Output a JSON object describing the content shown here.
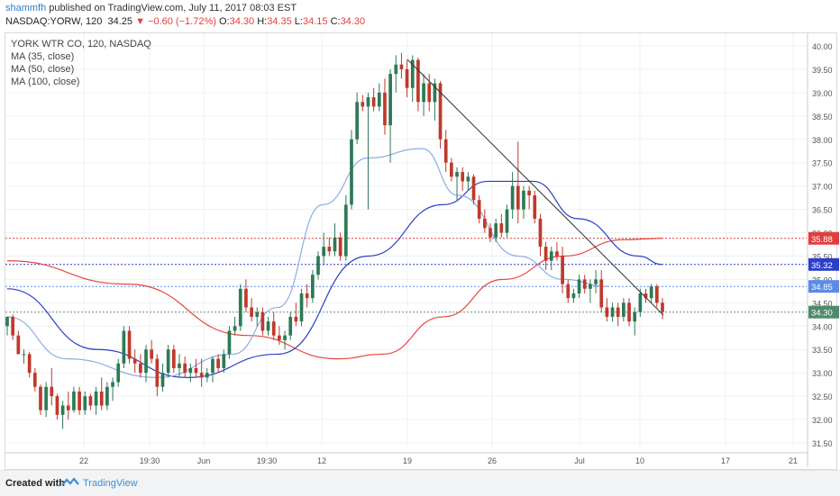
{
  "header": {
    "user": "shammfh",
    "published": " published on TradingView.com, July 11, 2017 08:03 EST",
    "symbol": "NASDAQ:YORW, 120",
    "last": "34.25",
    "arrow": "▼",
    "change": "−0.60 (−1.72%)",
    "o_label": "O:",
    "o_value": "34.30",
    "h_label": "H:",
    "h_value": "34.35",
    "l_label": "L:",
    "l_value": "34.15",
    "c_label": "C:",
    "c_value": "34.30"
  },
  "legend": {
    "title": "YORK WTR CO, 120, NASDAQ",
    "ma35": "MA (35, close)",
    "ma50": "MA (50, close)",
    "ma100": "MA (100, close)"
  },
  "footer": {
    "created_with": "Created with",
    "brand": "TradingView"
  },
  "colors": {
    "up": "#2d7a55",
    "down": "#c0392b",
    "ma35": "#8aaee6",
    "ma50": "#2a3fc8",
    "ma100": "#e8463c",
    "trendline": "#333333",
    "red_level": "#e03e3e",
    "blue_level": "#2a3fc8",
    "light_level": "#5b8be8",
    "gray_level": "#6a8a7a"
  },
  "chart_data": {
    "type": "candlestick",
    "title": "YORK WTR CO, 120, NASDAQ",
    "ylim": [
      31.2,
      40.2
    ],
    "y_ticks": [
      "40.00",
      "39.50",
      "39.00",
      "38.50",
      "38.00",
      "37.50",
      "37.00",
      "36.50",
      "36.00",
      "35.50",
      "35.00",
      "34.50",
      "34.00",
      "33.50",
      "33.00",
      "32.50",
      "32.00",
      "31.50"
    ],
    "x_ticks": [
      "22",
      "19:30",
      "Jun",
      "19:30",
      "12",
      "19",
      "26",
      "Jul",
      "10",
      "17",
      "21"
    ],
    "price_labels": [
      {
        "text": "35.88",
        "value": 35.88,
        "color": "#e03e3e"
      },
      {
        "text": "35.32",
        "value": 35.32,
        "color": "#2a3fc8"
      },
      {
        "text": "34.85",
        "value": 34.85,
        "color": "#5b8be8"
      },
      {
        "text": "34.30",
        "value": 34.3,
        "color": "#4e8c6a"
      }
    ],
    "candles": [
      [
        34.0,
        34.2,
        33.8,
        34.2
      ],
      [
        34.2,
        34.25,
        33.7,
        33.8
      ],
      [
        33.8,
        33.9,
        33.4,
        33.4
      ],
      [
        33.4,
        33.5,
        33.2,
        33.4
      ],
      [
        33.4,
        33.45,
        32.9,
        33.0
      ],
      [
        33.0,
        33.1,
        32.6,
        32.7
      ],
      [
        32.7,
        32.75,
        32.1,
        32.2
      ],
      [
        32.2,
        32.8,
        32.05,
        32.7
      ],
      [
        32.7,
        33.1,
        32.3,
        32.5
      ],
      [
        32.5,
        32.55,
        32.0,
        32.1
      ],
      [
        32.1,
        32.4,
        31.8,
        32.3
      ],
      [
        32.3,
        32.6,
        32.0,
        32.2
      ],
      [
        32.2,
        32.7,
        32.15,
        32.6
      ],
      [
        32.6,
        32.7,
        32.1,
        32.2
      ],
      [
        32.2,
        32.6,
        32.1,
        32.5
      ],
      [
        32.5,
        32.55,
        32.2,
        32.3
      ],
      [
        32.3,
        32.7,
        32.1,
        32.6
      ],
      [
        32.6,
        32.9,
        32.2,
        32.3
      ],
      [
        32.3,
        32.8,
        32.2,
        32.7
      ],
      [
        32.7,
        32.9,
        32.4,
        32.8
      ],
      [
        32.8,
        33.3,
        32.7,
        33.2
      ],
      [
        33.2,
        34.0,
        33.1,
        33.9
      ],
      [
        33.9,
        34.0,
        33.2,
        33.3
      ],
      [
        33.3,
        33.5,
        33.0,
        33.2
      ],
      [
        33.2,
        33.4,
        32.9,
        33.0
      ],
      [
        33.0,
        33.6,
        32.8,
        33.5
      ],
      [
        33.5,
        33.7,
        33.2,
        33.3
      ],
      [
        33.3,
        33.4,
        32.5,
        32.7
      ],
      [
        32.7,
        33.2,
        32.6,
        33.0
      ],
      [
        33.0,
        33.6,
        32.9,
        33.5
      ],
      [
        33.5,
        33.6,
        33.0,
        33.1
      ],
      [
        33.1,
        33.4,
        32.9,
        33.2
      ],
      [
        33.2,
        33.35,
        32.9,
        33.0
      ],
      [
        33.0,
        33.2,
        32.8,
        33.1
      ],
      [
        33.1,
        33.3,
        32.9,
        33.0
      ],
      [
        33.0,
        33.3,
        32.7,
        32.9
      ],
      [
        32.9,
        33.1,
        32.8,
        33.0
      ],
      [
        33.0,
        33.35,
        32.8,
        33.3
      ],
      [
        33.3,
        33.4,
        33.0,
        33.1
      ],
      [
        33.1,
        33.5,
        33.0,
        33.4
      ],
      [
        33.4,
        34.0,
        33.3,
        33.9
      ],
      [
        33.9,
        34.2,
        33.8,
        34.0
      ],
      [
        34.0,
        34.9,
        33.9,
        34.8
      ],
      [
        34.8,
        35.0,
        34.3,
        34.4
      ],
      [
        34.4,
        34.6,
        34.1,
        34.2
      ],
      [
        34.2,
        34.4,
        34.0,
        34.3
      ],
      [
        34.3,
        34.4,
        33.8,
        33.9
      ],
      [
        33.9,
        34.2,
        33.8,
        34.1
      ],
      [
        34.1,
        34.3,
        33.7,
        33.8
      ],
      [
        33.8,
        34.0,
        33.6,
        33.7
      ],
      [
        33.7,
        33.9,
        33.5,
        33.8
      ],
      [
        33.8,
        34.3,
        33.7,
        34.2
      ],
      [
        34.2,
        34.5,
        34.0,
        34.1
      ],
      [
        34.1,
        34.8,
        34.0,
        34.7
      ],
      [
        34.7,
        34.9,
        34.4,
        34.6
      ],
      [
        34.6,
        35.2,
        34.5,
        35.1
      ],
      [
        35.1,
        35.6,
        35.0,
        35.5
      ],
      [
        35.5,
        36.0,
        35.3,
        35.7
      ],
      [
        35.7,
        35.9,
        35.5,
        35.6
      ],
      [
        35.6,
        36.2,
        35.5,
        35.9
      ],
      [
        35.9,
        36.0,
        35.4,
        35.5
      ],
      [
        35.5,
        36.8,
        35.4,
        36.6
      ],
      [
        36.6,
        38.2,
        36.5,
        38.0
      ],
      [
        38.0,
        39.0,
        37.9,
        38.8
      ],
      [
        38.8,
        38.95,
        38.6,
        38.7
      ],
      [
        38.7,
        39.0,
        36.5,
        38.9
      ],
      [
        38.9,
        39.1,
        38.6,
        38.7
      ],
      [
        38.7,
        39.2,
        38.6,
        39.0
      ],
      [
        39.0,
        39.3,
        38.1,
        38.3
      ],
      [
        38.3,
        39.5,
        37.5,
        39.4
      ],
      [
        39.4,
        39.8,
        39.0,
        39.6
      ],
      [
        39.6,
        39.85,
        39.3,
        39.5
      ],
      [
        39.5,
        39.7,
        38.9,
        39.1
      ],
      [
        39.1,
        39.8,
        38.8,
        39.7
      ],
      [
        39.7,
        39.75,
        38.6,
        38.8
      ],
      [
        38.8,
        39.4,
        38.5,
        39.2
      ],
      [
        39.2,
        39.4,
        38.6,
        38.8
      ],
      [
        38.8,
        39.3,
        38.4,
        39.2
      ],
      [
        39.2,
        39.25,
        37.8,
        38.0
      ],
      [
        38.0,
        38.2,
        37.3,
        37.5
      ],
      [
        37.5,
        37.6,
        37.1,
        37.2
      ],
      [
        37.2,
        37.4,
        36.7,
        37.3
      ],
      [
        37.3,
        37.4,
        36.9,
        37.1
      ],
      [
        37.1,
        37.3,
        36.9,
        37.2
      ],
      [
        37.2,
        37.25,
        36.6,
        36.7
      ],
      [
        36.7,
        36.8,
        36.2,
        36.3
      ],
      [
        36.3,
        36.5,
        36.0,
        36.1
      ],
      [
        36.1,
        36.2,
        35.8,
        35.9
      ],
      [
        35.9,
        36.3,
        35.8,
        36.2
      ],
      [
        36.2,
        36.4,
        35.9,
        36.0
      ],
      [
        36.0,
        36.6,
        35.9,
        36.5
      ],
      [
        36.5,
        37.3,
        36.3,
        37.0
      ],
      [
        37.0,
        37.95,
        36.2,
        36.5
      ],
      [
        36.5,
        37.0,
        36.3,
        36.9
      ],
      [
        36.9,
        37.0,
        36.5,
        36.8
      ],
      [
        36.8,
        36.9,
        36.2,
        36.3
      ],
      [
        36.3,
        36.4,
        35.5,
        35.7
      ],
      [
        35.7,
        35.8,
        35.2,
        35.4
      ],
      [
        35.4,
        35.7,
        35.2,
        35.6
      ],
      [
        35.6,
        35.8,
        35.4,
        35.5
      ],
      [
        35.5,
        35.7,
        34.7,
        34.9
      ],
      [
        34.9,
        35.0,
        34.5,
        34.6
      ],
      [
        34.6,
        34.8,
        34.5,
        34.7
      ],
      [
        34.7,
        35.1,
        34.6,
        35.0
      ],
      [
        35.0,
        35.1,
        34.7,
        34.8
      ],
      [
        34.8,
        35.0,
        34.5,
        34.9
      ],
      [
        34.9,
        35.2,
        34.7,
        35.0
      ],
      [
        35.0,
        35.2,
        34.3,
        34.4
      ],
      [
        34.4,
        34.6,
        34.1,
        34.2
      ],
      [
        34.2,
        34.5,
        34.1,
        34.4
      ],
      [
        34.4,
        34.5,
        34.0,
        34.2
      ],
      [
        34.2,
        34.6,
        34.1,
        34.5
      ],
      [
        34.5,
        34.6,
        34.0,
        34.1
      ],
      [
        34.1,
        34.4,
        33.8,
        34.3
      ],
      [
        34.3,
        34.8,
        34.2,
        34.7
      ],
      [
        34.7,
        34.8,
        34.5,
        34.6
      ],
      [
        34.6,
        34.9,
        34.5,
        34.85
      ],
      [
        34.85,
        34.9,
        34.4,
        34.5
      ],
      [
        34.5,
        34.6,
        34.15,
        34.3
      ]
    ],
    "ma35": [
      [
        0,
        34.2
      ],
      [
        20,
        33.3
      ],
      [
        50,
        32.9
      ],
      [
        75,
        33.4
      ],
      [
        90,
        34.4
      ],
      [
        105,
        36.6
      ],
      [
        120,
        37.6
      ],
      [
        138,
        37.8
      ],
      [
        150,
        36.8
      ],
      [
        170,
        35.5
      ],
      [
        185,
        35.0
      ],
      [
        200,
        34.85
      ]
    ],
    "ma50": [
      [
        0,
        34.8
      ],
      [
        30,
        33.5
      ],
      [
        60,
        32.9
      ],
      [
        90,
        33.4
      ],
      [
        120,
        35.5
      ],
      [
        145,
        36.6
      ],
      [
        160,
        37.1
      ],
      [
        175,
        37.1
      ],
      [
        190,
        36.3
      ],
      [
        210,
        35.5
      ],
      [
        218,
        35.32
      ]
    ],
    "ma100": [
      [
        0,
        35.4
      ],
      [
        40,
        34.9
      ],
      [
        80,
        33.8
      ],
      [
        110,
        33.3
      ],
      [
        125,
        33.4
      ],
      [
        145,
        34.2
      ],
      [
        165,
        35.0
      ],
      [
        185,
        35.5
      ],
      [
        205,
        35.85
      ],
      [
        218,
        35.88
      ]
    ],
    "trendline": [
      [
        39.75,
        "Jun 19"
      ],
      [
        34.2,
        "Jul 11"
      ]
    ]
  }
}
